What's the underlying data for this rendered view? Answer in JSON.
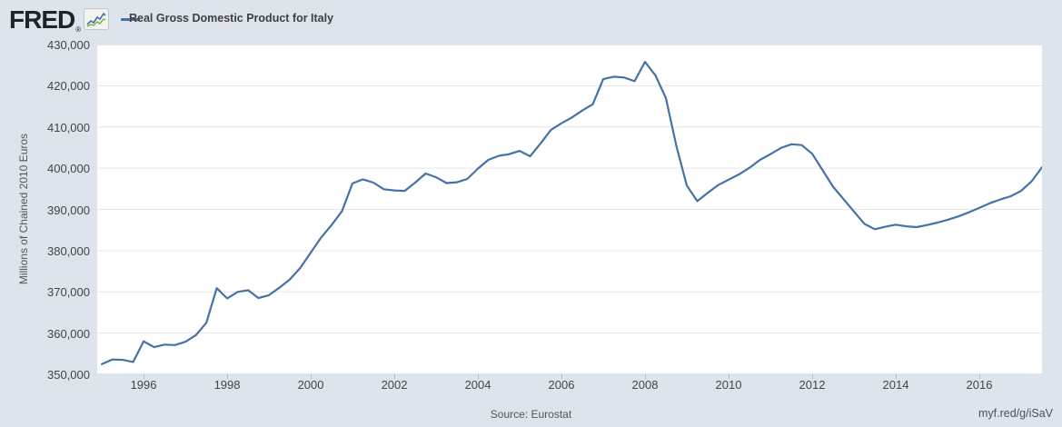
{
  "header": {
    "logo_text": "FRED",
    "registered_mark": "®",
    "legend_label": "Real Gross Domestic Product for Italy"
  },
  "footer": {
    "source_label": "Source: Eurostat",
    "link_label": "myf.red/g/iSaV"
  },
  "colors": {
    "background": "#dee4ec",
    "plot_background": "#ffffff",
    "line": "#4572a7",
    "gridline": "#e6e6e6",
    "tick_mark": "#aebbca",
    "tick_text": "#444444",
    "axis_title_text": "#555555",
    "header_text": "#404040",
    "logo_icon_blue": "#4572a7",
    "logo_icon_green": "#7fa854"
  },
  "chart_data": {
    "type": "line",
    "title": "Real Gross Domestic Product for Italy",
    "xlabel": "",
    "ylabel": "Millions of Chained 2010 Euros",
    "frequency": "Quarterly",
    "x_start": 1995.0,
    "x_step": 0.25,
    "xlim": [
      1994.89,
      2017.5
    ],
    "ylim": [
      350000,
      430000
    ],
    "yticks": [
      350000,
      360000,
      370000,
      380000,
      390000,
      400000,
      410000,
      420000,
      430000
    ],
    "xticks": [
      1996,
      1998,
      2000,
      2002,
      2004,
      2006,
      2008,
      2010,
      2012,
      2014,
      2016
    ],
    "grid": "horizontal",
    "legend_position": "top-left",
    "series": [
      {
        "name": "Real Gross Domestic Product for Italy",
        "color": "#4572a7",
        "values": [
          352500,
          353600,
          353500,
          353000,
          358000,
          356600,
          357200,
          357100,
          357900,
          359500,
          362500,
          370900,
          368400,
          370000,
          370400,
          368500,
          369200,
          371000,
          373000,
          375800,
          379500,
          383200,
          386200,
          389600,
          396300,
          397300,
          396500,
          394900,
          394600,
          394500,
          396500,
          398700,
          397800,
          396400,
          396600,
          397400,
          399900,
          402000,
          403000,
          403400,
          404200,
          402900,
          406000,
          409300,
          410900,
          412300,
          414000,
          415500,
          421600,
          422200,
          422000,
          421100,
          425800,
          422500,
          417000,
          405400,
          395800,
          392000,
          394000,
          395900,
          397200,
          398500,
          400100,
          402000,
          403400,
          404900,
          405800,
          405600,
          403500,
          399500,
          395500,
          392500,
          389500,
          386500,
          385200,
          385800,
          386300,
          385900,
          385700,
          386200,
          386800,
          387500,
          388300,
          389300,
          390400,
          391500,
          392400,
          393200,
          394500,
          396800,
          400200
        ]
      }
    ]
  }
}
